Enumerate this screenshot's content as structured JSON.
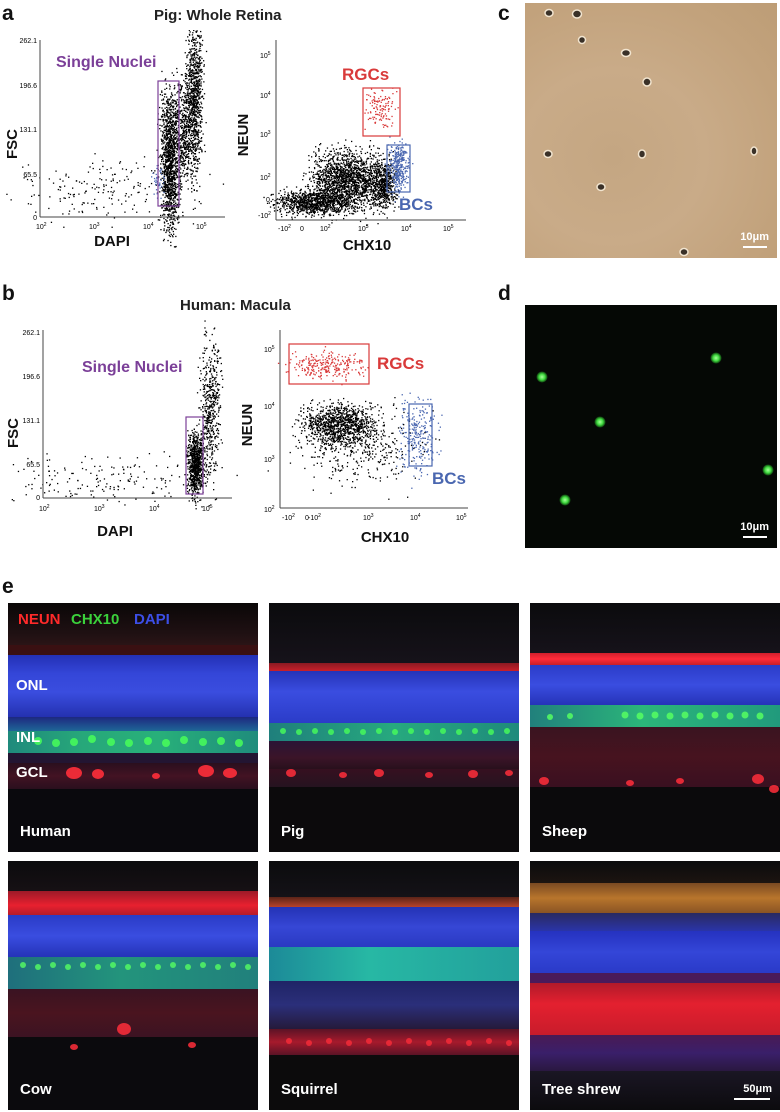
{
  "panel_letters": {
    "a": "a",
    "b": "b",
    "c": "c",
    "d": "d",
    "e": "e"
  },
  "panel_a": {
    "title": "Pig: Whole Retina",
    "scatter_left": {
      "ylabel": "FSC",
      "xlabel": "DAPI",
      "yticks": [
        "262.1",
        "196.6",
        "131.1",
        "65.5",
        "0"
      ],
      "xticks": [
        "10",
        "10",
        "10",
        "10",
        "10"
      ],
      "xtick_exps": [
        "2",
        "3",
        "4",
        "5",
        ""
      ],
      "gate_label": "Single Nuclei"
    },
    "scatter_right": {
      "ylabel": "NEUN",
      "xlabel": "CHX10",
      "yticks": [
        "10",
        "10",
        "10",
        "10",
        "0",
        "-10"
      ],
      "ytick_exps": [
        "5",
        "4",
        "3",
        "2",
        "",
        "2"
      ],
      "xticks": [
        "-10",
        "0",
        "10",
        "10",
        "10",
        "10"
      ],
      "xtick_exps": [
        "2",
        "",
        "2",
        "3",
        "4",
        "5"
      ],
      "gate_top": "RGCs",
      "gate_bottom": "BCs"
    }
  },
  "panel_b": {
    "title": "Human: Macula",
    "scatter_left": {
      "ylabel": "FSC",
      "xlabel": "DAPI",
      "yticks": [
        "262.1",
        "196.6",
        "131.1",
        "65.5",
        "0"
      ],
      "xticks": [
        "10",
        "10",
        "10",
        "10",
        "10"
      ],
      "xtick_exps": [
        "2",
        "3",
        "4",
        "5",
        ""
      ],
      "gate_label": "Single Nuclei"
    },
    "scatter_right": {
      "ylabel": "NEUN",
      "xlabel": "CHX10",
      "yticks": [
        "10",
        "10",
        "10",
        "10"
      ],
      "ytick_exps": [
        "5",
        "4",
        "3",
        "2"
      ],
      "xticks": [
        "-10",
        "0",
        "10",
        "10",
        "10",
        "10"
      ],
      "xtick_exps": [
        "2",
        "",
        "2",
        "3",
        "4",
        "5"
      ],
      "gate_top": "RGCs",
      "gate_bottom": "BCs"
    }
  },
  "panel_c": {
    "scale": "10μm"
  },
  "panel_d": {
    "scale": "10μm"
  },
  "panel_e": {
    "legend": {
      "neun": "NEUN",
      "chx10": "CHX10",
      "dapi": "DAPI"
    },
    "layers": {
      "onl": "ONL",
      "inl": "INL",
      "gcl": "GCL"
    },
    "tiles": [
      "Human",
      "Pig",
      "Sheep",
      "Cow",
      "Squirrel",
      "Tree shrew"
    ],
    "scale": "50μm"
  },
  "colors": {
    "gate_purple": "#7b3f98",
    "rgc_red": "#d93a3a",
    "bc_blue": "#4a67b0",
    "neun_red": "#ff2a2a",
    "chx10_green": "#3bd13b",
    "dapi_blue": "#3c4ee6"
  }
}
